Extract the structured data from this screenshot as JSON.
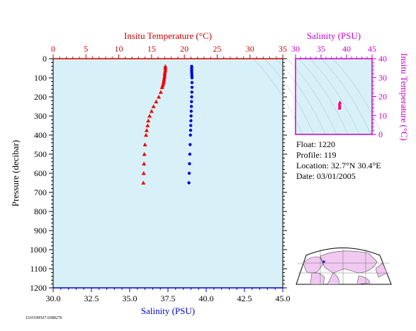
{
  "chart_data": [
    {
      "type": "scatter",
      "id": "main-profile",
      "top_axis_label": "Insitu Temperature (°C)",
      "top_ticks": [
        "0",
        "5",
        "10",
        "15",
        "20",
        "25",
        "30",
        "35"
      ],
      "top_range": [
        0,
        35
      ],
      "bottom_axis_label": "Salinity (PSU)",
      "bottom_ticks": [
        "30.0",
        "32.5",
        "35.0",
        "37.5",
        "40.0",
        "42.5",
        "45.0"
      ],
      "bottom_range": [
        30,
        45
      ],
      "left_axis_label": "Pressure (decibar)",
      "left_ticks": [
        "0",
        "100",
        "200",
        "300",
        "400",
        "500",
        "600",
        "700",
        "800",
        "900",
        "1000",
        "1100",
        "1200"
      ],
      "left_range": [
        0,
        1200
      ],
      "colors": {
        "temperature": "#ee0000",
        "salinity": "#0000dd",
        "plot_bg": "#d8f1f8",
        "axis_temp": "#cc0000",
        "axis_sal": "#0000cc"
      },
      "series": [
        {
          "kind": "temperature",
          "marker": "triangle",
          "points": [
            [
              17.1,
              40
            ],
            [
              17.1,
              50
            ],
            [
              17.1,
              60
            ],
            [
              17.05,
              70
            ],
            [
              17.0,
              80
            ],
            [
              17.0,
              90
            ],
            [
              16.95,
              100
            ],
            [
              16.9,
              110
            ],
            [
              16.85,
              120
            ],
            [
              16.8,
              130
            ],
            [
              16.7,
              140
            ],
            [
              16.6,
              150
            ],
            [
              16.4,
              175
            ],
            [
              16.1,
              200
            ],
            [
              15.7,
              225
            ],
            [
              15.3,
              250
            ],
            [
              15.0,
              275
            ],
            [
              14.7,
              300
            ],
            [
              14.5,
              325
            ],
            [
              14.4,
              350
            ],
            [
              14.25,
              375
            ],
            [
              14.15,
              400
            ],
            [
              14.0,
              450
            ],
            [
              13.9,
              500
            ],
            [
              13.85,
              550
            ],
            [
              13.8,
              600
            ],
            [
              13.75,
              650
            ]
          ]
        },
        {
          "kind": "salinity",
          "marker": "circle",
          "points": [
            [
              39.05,
              40
            ],
            [
              39.05,
              50
            ],
            [
              39.05,
              60
            ],
            [
              39.05,
              70
            ],
            [
              39.06,
              80
            ],
            [
              39.06,
              90
            ],
            [
              39.07,
              100
            ],
            [
              39.07,
              125
            ],
            [
              39.07,
              150
            ],
            [
              39.06,
              175
            ],
            [
              39.05,
              200
            ],
            [
              39.04,
              225
            ],
            [
              39.03,
              250
            ],
            [
              39.02,
              275
            ],
            [
              39.01,
              300
            ],
            [
              39.0,
              325
            ],
            [
              38.99,
              350
            ],
            [
              38.98,
              375
            ],
            [
              38.97,
              400
            ],
            [
              38.95,
              450
            ],
            [
              38.93,
              500
            ],
            [
              38.91,
              550
            ],
            [
              38.89,
              600
            ],
            [
              38.87,
              650
            ]
          ]
        }
      ]
    },
    {
      "type": "scatter",
      "id": "ts-diagram",
      "top_axis_label": "Salinity (PSU)",
      "top_ticks": [
        "30",
        "35",
        "40",
        "45"
      ],
      "top_range": [
        30,
        45
      ],
      "right_axis_label": "Insitu Temperature (°C)",
      "right_ticks": [
        "0",
        "10",
        "20",
        "30",
        "40"
      ],
      "right_range": [
        0,
        40
      ],
      "colors": {
        "points": "#ff0077",
        "axis": "#cc00cc",
        "contours": "#9aa8b8"
      },
      "points": [
        [
          38.7,
          17.1
        ],
        [
          38.7,
          16.9
        ],
        [
          38.65,
          16.6
        ],
        [
          38.6,
          16.2
        ],
        [
          38.62,
          15.7
        ],
        [
          38.65,
          15.3
        ],
        [
          38.7,
          15.0
        ],
        [
          38.68,
          14.7
        ],
        [
          38.65,
          14.4
        ],
        [
          38.62,
          14.2
        ],
        [
          38.6,
          14.0
        ],
        [
          38.6,
          13.9
        ],
        [
          38.6,
          13.8
        ]
      ]
    }
  ],
  "info": {
    "float": "Float:  1220",
    "profile": "Profile:  119",
    "location": "Location:  32.7°N  30.4°E",
    "date": "Date:  03/01/2005"
  },
  "map": {
    "colors": {
      "land": "#f0c8f0",
      "ocean": "#ffffff",
      "lines": "#555555",
      "marker": "#0000ff"
    }
  },
  "footer": {
    "code": "1110199507.0388276"
  }
}
